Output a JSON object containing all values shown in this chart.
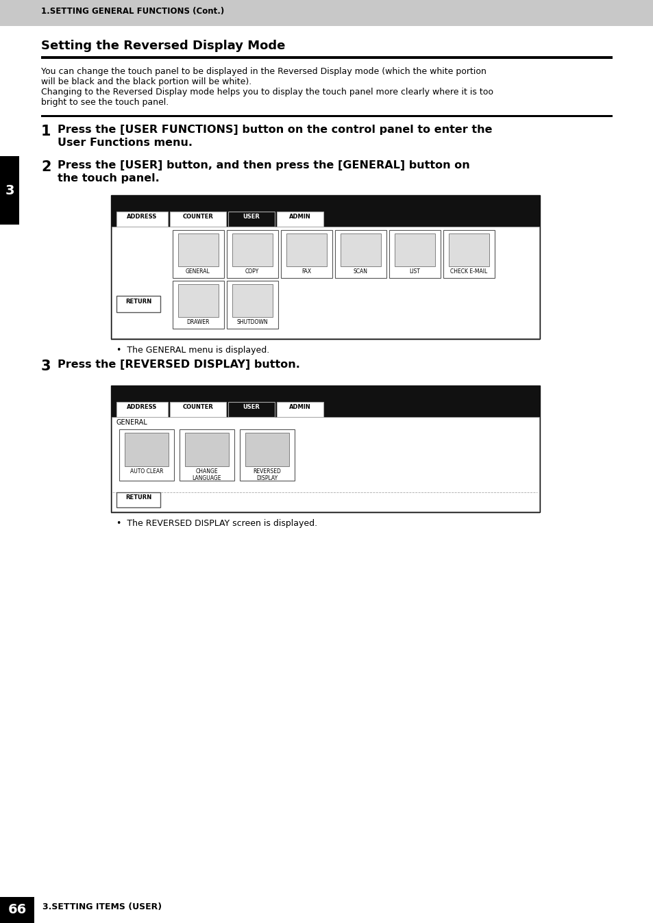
{
  "header_bg": "#c8c8c8",
  "header_text": "1.SETTING GENERAL FUNCTIONS (Cont.)",
  "page_bg": "#ffffff",
  "title": "Setting the Reversed Display Mode",
  "body_text1_lines": [
    "You can change the touch panel to be displayed in the Reversed Display mode (which the white portion",
    "will be black and the black portion will be white).",
    "Changing to the Reversed Display mode helps you to display the touch panel more clearly where it is too",
    "bright to see the touch panel."
  ],
  "step1_num": "1",
  "step1_text_line1": "Press the [USER FUNCTIONS] button on the control panel to enter the",
  "step1_text_line2": "User Functions menu.",
  "step2_num": "2",
  "step2_text_line1": "Press the [USER] button, and then press the [GENERAL] button on",
  "step2_text_line2": "the touch panel.",
  "step3_num": "3",
  "step3_text": "Press the [REVERSED DISPLAY] button.",
  "note1": "The GENERAL menu is displayed.",
  "note2": "The REVERSED DISPLAY screen is displayed.",
  "footer_num": "66",
  "footer_sub": "3.SETTING ITEMS (USER)",
  "sidebar_text": "3",
  "tab_names": [
    "ADDRESS",
    "COUNTER",
    "USER",
    "ADMIN"
  ],
  "screen1_icons_row1": [
    "GENERAL",
    "COPY",
    "FAX",
    "SCAN",
    "LIST",
    "CHECK E-MAIL"
  ],
  "screen1_icons_row2": [
    "RETURN",
    "DRAWER",
    "SHUTDOWN"
  ],
  "screen2_icons": [
    "AUTO CLEAR",
    "CHANGE\nLANGUAGE",
    "REVERSED\nDISPLAY"
  ],
  "screen2_label": "GENERAL"
}
